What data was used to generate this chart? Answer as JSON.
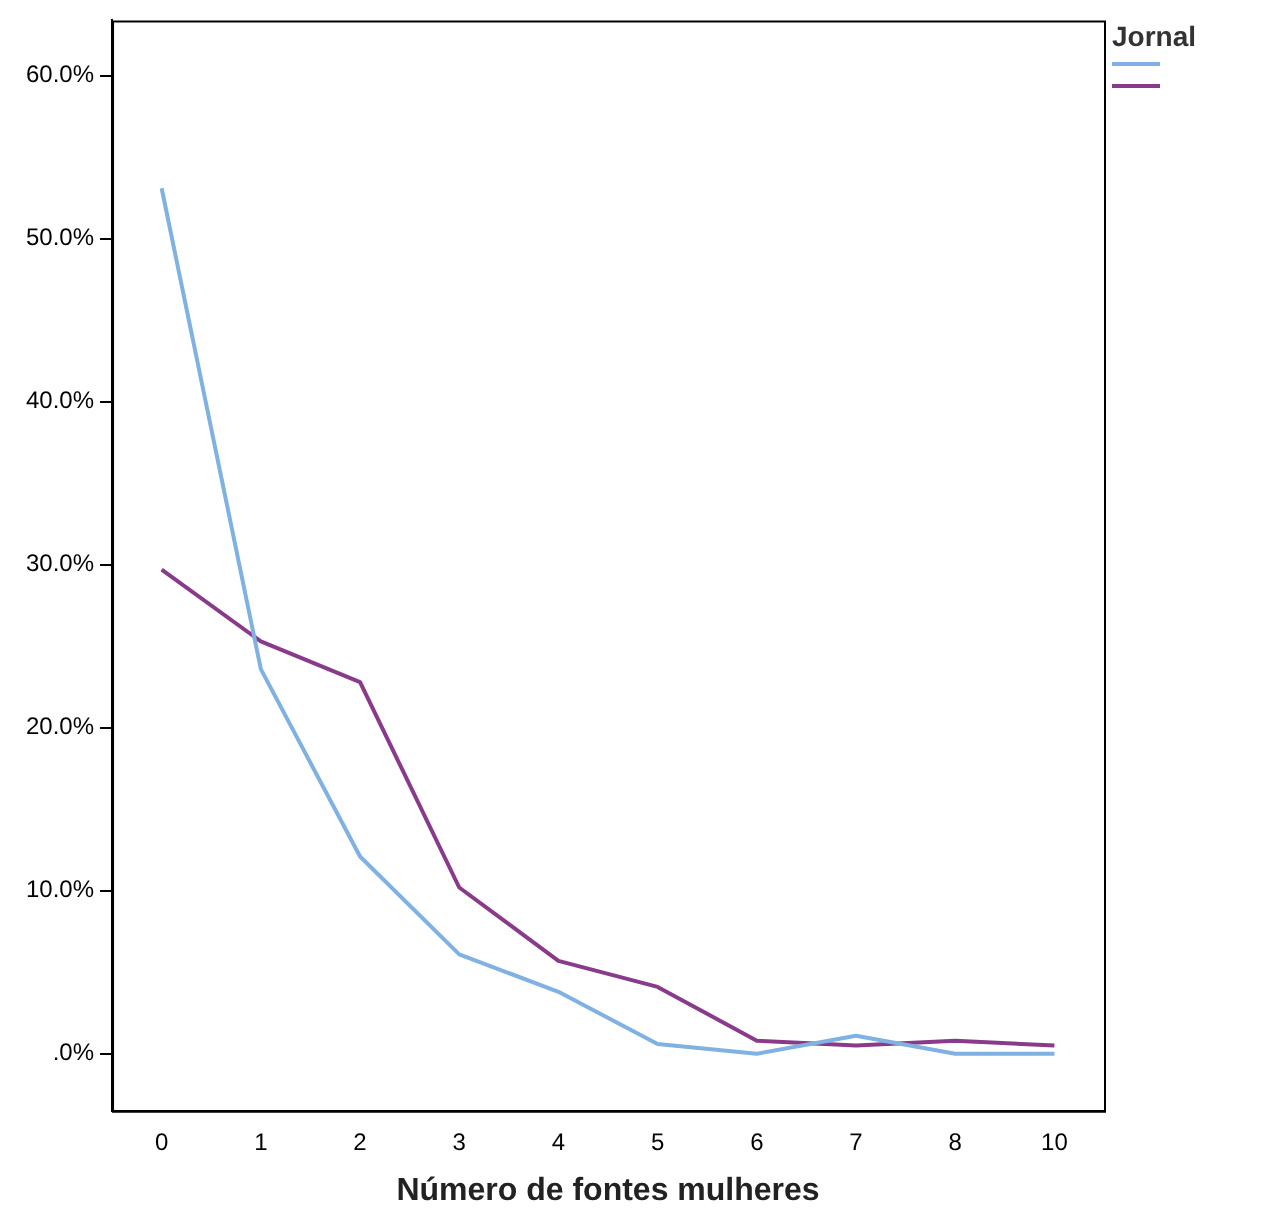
{
  "chart_data": {
    "type": "line",
    "xlabel": "Número de fontes mulheres",
    "legend_title": "Jornal",
    "legend": false,
    "grid": false,
    "marker": "none",
    "line_style": "solid",
    "categories": [
      "0",
      "1",
      "2",
      "3",
      "4",
      "5",
      "6",
      "7",
      "8",
      "10"
    ],
    "ylim": [
      -3.5,
      63.4
    ],
    "yticks": [
      {
        "value": 0,
        "label": ".0%"
      },
      {
        "value": 10,
        "label": "10.0%"
      },
      {
        "value": 20,
        "label": "20.0%"
      },
      {
        "value": 30,
        "label": "30.0%"
      },
      {
        "value": 40,
        "label": "40.0%"
      },
      {
        "value": 50,
        "label": "50.0%"
      },
      {
        "value": 60,
        "label": "60.0%"
      }
    ],
    "series": [
      {
        "color": "#7fb1e3",
        "values": [
          53.1,
          23.6,
          12.1,
          6.1,
          3.8,
          0.6,
          0,
          1.1,
          0,
          0
        ]
      },
      {
        "color": "#8a3a8a",
        "values": [
          29.7,
          25.3,
          22.8,
          10.2,
          5.7,
          4.1,
          0.8,
          0.5,
          0.8,
          0.5
        ]
      }
    ]
  }
}
